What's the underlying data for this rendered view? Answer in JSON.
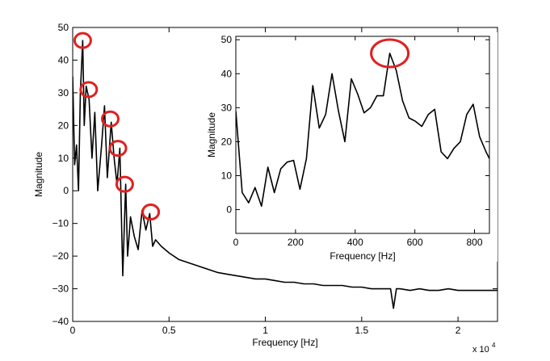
{
  "chart_data": [
    {
      "id": "main",
      "type": "line",
      "title": "",
      "xlabel": "Frequency [Hz]",
      "ylabel": "Magnitude",
      "x_multiplier_label": "x 10",
      "x_multiplier_exponent": "4",
      "xlim": [
        0,
        22050
      ],
      "ylim": [
        -40,
        50
      ],
      "grid": false,
      "x_ticks": [
        0,
        5000,
        10000,
        15000,
        20000
      ],
      "x_tick_labels": [
        "0",
        "0.5",
        "1",
        "1.5",
        "2"
      ],
      "y_ticks": [
        -40,
        -30,
        -20,
        -10,
        0,
        10,
        20,
        30,
        40,
        50
      ],
      "y_tick_labels": [
        "−40",
        "−30",
        "−20",
        "−10",
        "0",
        "10",
        "20",
        "30",
        "40",
        "50"
      ],
      "series": [
        {
          "line_color": "#000000",
          "x": [
            0,
            100,
            200,
            300,
            400,
            520,
            600,
            700,
            850,
            1000,
            1150,
            1300,
            1500,
            1650,
            1800,
            2000,
            2150,
            2300,
            2450,
            2600,
            2750,
            2850,
            3000,
            3200,
            3400,
            3600,
            3800,
            4000,
            4150,
            4300,
            4600,
            5000,
            5500,
            6000,
            6500,
            7000,
            7500,
            8000,
            8500,
            9000,
            9500,
            10000,
            10500,
            11000,
            11500,
            12000,
            12500,
            13000,
            13500,
            14000,
            14500,
            15000,
            15500,
            16000,
            16500,
            16650,
            16800,
            17000,
            17500,
            18000,
            18500,
            19000,
            19500,
            20000,
            20500,
            21000,
            21500,
            22050
          ],
          "y": [
            35,
            8,
            14,
            0,
            30,
            46,
            20,
            32,
            28,
            10,
            24,
            0,
            14,
            26,
            4,
            21,
            10,
            2,
            13,
            -26,
            2,
            -20,
            -8,
            -14,
            -18,
            -6,
            -12,
            -7,
            -17,
            -15,
            -17,
            -19,
            -21,
            -22,
            -23,
            -24,
            -25,
            -25.5,
            -26,
            -26.5,
            -27,
            -27,
            -27.5,
            -28,
            -28,
            -28.5,
            -28.5,
            -29,
            -29,
            -29,
            -29.5,
            -29.5,
            -30,
            -30,
            -30,
            -36,
            -30,
            -30,
            -30.5,
            -30,
            -30.5,
            -30.5,
            -30,
            -30.5,
            -30.5,
            -30.5,
            -30.5,
            -30.5
          ]
        }
      ],
      "peak_markers": [
        {
          "x": 520,
          "y": 46
        },
        {
          "x": 830,
          "y": 31
        },
        {
          "x": 1950,
          "y": 22
        },
        {
          "x": 2350,
          "y": 13
        },
        {
          "x": 2700,
          "y": 2
        },
        {
          "x": 4050,
          "y": -6.5
        }
      ],
      "marker_color": "#e02020"
    },
    {
      "id": "inset",
      "type": "line",
      "title": "",
      "xlabel": "Frequency [Hz]",
      "ylabel": "Magnitude",
      "xlim": [
        0,
        850
      ],
      "ylim": [
        -7,
        51
      ],
      "grid": false,
      "x_ticks": [
        0,
        200,
        400,
        600,
        800
      ],
      "x_tick_labels": [
        "0",
        "200",
        "400",
        "600",
        "800"
      ],
      "y_ticks": [
        0,
        10,
        20,
        30,
        40,
        50
      ],
      "y_tick_labels": [
        "0",
        "10",
        "20",
        "30",
        "40",
        "50"
      ],
      "series": [
        {
          "line_color": "#000000",
          "x": [
            0,
            21.5,
            43,
            64.5,
            86,
            107.5,
            129,
            150.5,
            172,
            193.5,
            215,
            236.5,
            258,
            279.5,
            301,
            322.5,
            344,
            365.5,
            387,
            408.5,
            430,
            451.5,
            473,
            494.5,
            516,
            537.5,
            559,
            580.5,
            602,
            623.5,
            645,
            666.5,
            688,
            709.5,
            731,
            752.5,
            774,
            795.5,
            817,
            838.5,
            850
          ],
          "y": [
            29,
            5,
            2,
            6.5,
            1,
            12.5,
            5,
            12,
            14,
            14.5,
            6,
            15,
            36.5,
            24,
            28,
            40,
            29,
            20,
            38.5,
            34,
            28.5,
            30,
            33.5,
            33.5,
            46,
            41,
            32,
            27,
            26,
            24.5,
            28,
            29.5,
            17,
            15,
            18,
            20,
            28,
            31,
            21.5,
            17,
            15
          ]
        }
      ],
      "peak_markers": [
        {
          "x": 516,
          "y": 46
        }
      ],
      "marker_color": "#e02020"
    }
  ]
}
